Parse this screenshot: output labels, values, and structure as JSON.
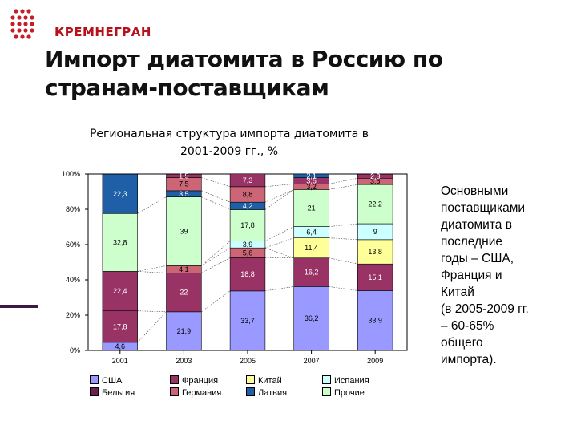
{
  "header": {
    "logo_text": "КРЕМНЕГРАН",
    "title_line1": "Импорт диатомита в Россию по",
    "title_line2": "странам-поставщикам"
  },
  "side_note": {
    "lines": [
      "Основными",
      "поставщиками",
      "диатомита в",
      "последние",
      "годы – США,",
      "Франция и",
      "Китай",
      "(в 2005-2009 гг.",
      "– 60-65%",
      "общего",
      "импорта)."
    ]
  },
  "chart_data": {
    "type": "bar",
    "stacked": true,
    "title_line1": "Региональная структура импорта диатомита в",
    "title_line2": "2001-2009 гг., %",
    "categories": [
      "2001",
      "2003",
      "2005",
      "2007",
      "2009"
    ],
    "ylim": [
      0,
      100
    ],
    "yticks": [
      "0%",
      "20%",
      "40%",
      "60%",
      "80%",
      "100%"
    ],
    "grid": false,
    "legend_position": "bottom",
    "series": [
      {
        "name": "США",
        "color": "#9999ff",
        "values": [
          4.6,
          21.9,
          33.7,
          36.2,
          33.9
        ],
        "labels": [
          "4,6",
          "21,9",
          "33,7",
          "36,2",
          "33,9"
        ]
      },
      {
        "name": "Бельгия",
        "color": "#993366",
        "values": [
          17.8,
          0,
          0,
          0,
          0
        ],
        "labels": [
          "17,8",
          "",
          "",
          "",
          ""
        ]
      },
      {
        "name": "Франция",
        "color": "#993366",
        "values": [
          22.4,
          22,
          18.8,
          16.2,
          15.1
        ],
        "labels": [
          "22,4",
          "22",
          "18,8",
          "16,2",
          "15,1"
        ]
      },
      {
        "name": "Германия",
        "color": "#cc6677",
        "values": [
          0,
          4.1,
          5.6,
          0,
          0
        ],
        "labels": [
          "",
          "4,1",
          "5,6",
          "",
          ""
        ]
      },
      {
        "name": "Китай",
        "color": "#ffff99",
        "values": [
          0,
          0,
          0,
          11.4,
          13.8
        ],
        "labels": [
          "",
          "",
          "",
          "11,4",
          "13,8"
        ]
      },
      {
        "name": "Испания",
        "color": "#ccffff",
        "values": [
          0,
          0,
          3.9,
          6.4,
          9
        ],
        "labels": [
          "",
          "",
          "3,9",
          "6,4",
          "9"
        ]
      },
      {
        "name": "Прочие",
        "color": "#ccffcc",
        "values": [
          32.8,
          39,
          17.8,
          21,
          22.2
        ],
        "labels": [
          "32,8",
          "39",
          "17,8",
          "21",
          "22,2"
        ]
      },
      {
        "name": "Латвия",
        "color": "#1f5fa8",
        "values": [
          22.3,
          3.5,
          4.2,
          0,
          0
        ],
        "labels": [
          "22,3",
          "3,5",
          "4,2",
          "",
          ""
        ]
      },
      {
        "name": "",
        "color": "#cc6677",
        "values": [
          0,
          7.5,
          8.8,
          3.2,
          3.6
        ],
        "labels": [
          "",
          "7,5",
          "8,8",
          "3,2",
          "3,6"
        ]
      },
      {
        "name": "",
        "color": "#993366",
        "values": [
          0,
          1.9,
          7.3,
          3.5,
          2.3
        ],
        "labels": [
          "",
          "1,9",
          "7,3",
          "3,5",
          "2,3"
        ]
      },
      {
        "name": "",
        "color": "#1f5fa8",
        "values": [
          0,
          0,
          0,
          2.1,
          0
        ],
        "labels": [
          "",
          "",
          "",
          "2,1",
          ""
        ]
      }
    ],
    "legend": [
      {
        "label": "США",
        "color": "#9999ff"
      },
      {
        "label": "Франция",
        "color": "#993366"
      },
      {
        "label": "Китай",
        "color": "#ffff99"
      },
      {
        "label": "Испания",
        "color": "#ccffff"
      },
      {
        "label": "Бельгия",
        "color": "#6b1f4f"
      },
      {
        "label": "Германия",
        "color": "#cc6677"
      },
      {
        "label": "Латвия",
        "color": "#1f5fa8"
      },
      {
        "label": "Прочие",
        "color": "#ccffcc"
      }
    ]
  },
  "colors": {
    "brand": "#b5121b",
    "accent_line": "#3c1844"
  }
}
